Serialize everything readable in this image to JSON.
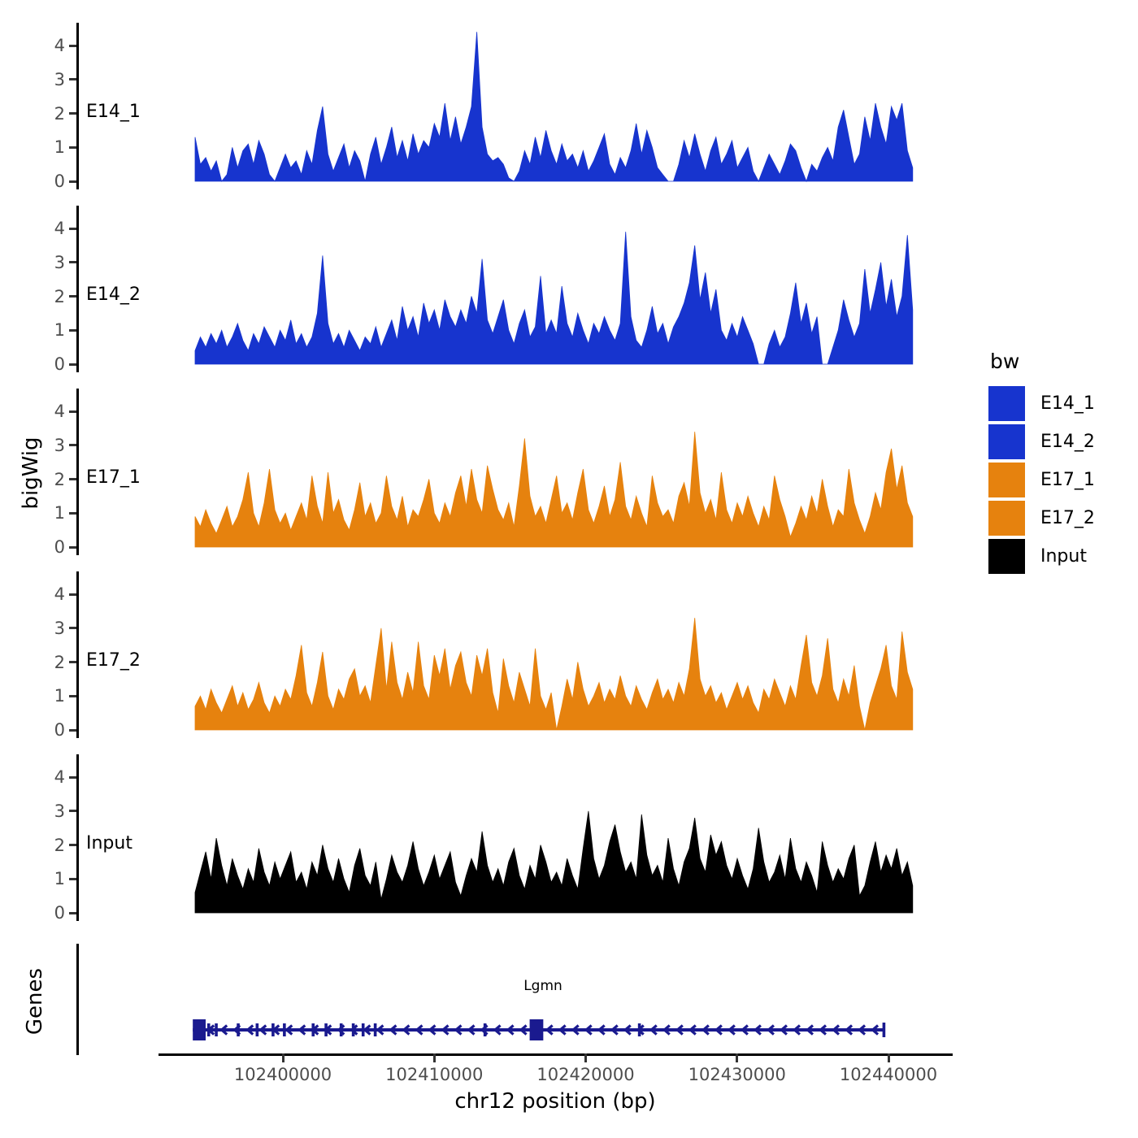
{
  "figure": {
    "y_axis_title": "bigWig",
    "genes_axis_title": "Genes",
    "x_axis_title": "chr12 position (bp)",
    "y_ticks": [
      0,
      1,
      2,
      3,
      4
    ],
    "x_ticks": [
      {
        "bp": 102400000,
        "label": "102400000"
      },
      {
        "bp": 102410000,
        "label": "102410000"
      },
      {
        "bp": 102420000,
        "label": "102420000"
      },
      {
        "bp": 102430000,
        "label": "102430000"
      },
      {
        "bp": 102440000,
        "label": "102440000"
      }
    ],
    "colors": {
      "blue": "#1734CE",
      "orange": "#E6820E",
      "black": "#000000",
      "gene_navy": "#1A1A8F",
      "axis_text_gray": "#4d4d4d"
    }
  },
  "legend": {
    "title": "bw",
    "items": [
      {
        "label": "E14_1",
        "color": "#1734CE"
      },
      {
        "label": "E14_2",
        "color": "#1734CE"
      },
      {
        "label": "E17_1",
        "color": "#E6820E"
      },
      {
        "label": "E17_2",
        "color": "#E6820E"
      },
      {
        "label": "Input",
        "color": "#000000"
      }
    ]
  },
  "chart_data": {
    "type": "area",
    "title": "",
    "xlabel": "chr12 position (bp)",
    "ylabel": "bigWig",
    "ylim": [
      0,
      4.5
    ],
    "x_start_bp": 102394200,
    "x_end_bp": 102441600,
    "x_axis_ticks_bp": [
      102400000,
      102410000,
      102420000,
      102430000,
      102440000
    ],
    "series": [
      {
        "name": "E14_1",
        "color": "#1734CE",
        "values": [
          1.3,
          0.5,
          0.7,
          0.3,
          0.6,
          0,
          0.2,
          1.0,
          0.4,
          0.9,
          1.1,
          0.5,
          1.2,
          0.8,
          0.2,
          0,
          0.4,
          0.8,
          0.4,
          0.6,
          0.2,
          0.9,
          0.5,
          1.5,
          2.2,
          0.8,
          0.3,
          0.7,
          1.1,
          0.4,
          0.9,
          0.6,
          0,
          0.8,
          1.3,
          0.5,
          1.0,
          1.6,
          0.7,
          1.2,
          0.6,
          1.4,
          0.8,
          1.2,
          1.0,
          1.7,
          1.3,
          2.3,
          1.2,
          1.9,
          1.1,
          1.6,
          2.2,
          4.4,
          1.6,
          0.8,
          0.6,
          0.7,
          0.5,
          0.1,
          0,
          0.3,
          0.9,
          0.5,
          1.3,
          0.7,
          1.5,
          0.9,
          0.5,
          1.1,
          0.6,
          0.8,
          0.4,
          0.9,
          0.3,
          0.6,
          1.0,
          1.4,
          0.5,
          0.2,
          0.7,
          0.4,
          0.9,
          1.7,
          0.8,
          1.5,
          1.0,
          0.4,
          0.2,
          0,
          0,
          0.5,
          1.2,
          0.7,
          1.4,
          0.8,
          0.3,
          0.9,
          1.3,
          0.5,
          0.8,
          1.2,
          0.4,
          0.7,
          1.0,
          0.3,
          0,
          0.4,
          0.8,
          0.5,
          0.2,
          0.6,
          1.1,
          0.9,
          0.4,
          0,
          0.5,
          0.3,
          0.7,
          1.0,
          0.6,
          1.6,
          2.1,
          1.3,
          0.5,
          0.8,
          1.9,
          1.2,
          2.3,
          1.6,
          1.1,
          2.2,
          1.8,
          2.3,
          0.9,
          0.4
        ]
      },
      {
        "name": "E14_2",
        "color": "#1734CE",
        "values": [
          0.4,
          0.8,
          0.5,
          0.9,
          0.6,
          1.0,
          0.5,
          0.8,
          1.2,
          0.7,
          0.4,
          0.9,
          0.6,
          1.1,
          0.8,
          0.5,
          1.0,
          0.7,
          1.3,
          0.6,
          0.9,
          0.5,
          0.8,
          1.5,
          3.2,
          1.2,
          0.6,
          0.9,
          0.5,
          1.0,
          0.7,
          0.4,
          0.8,
          0.6,
          1.1,
          0.5,
          0.9,
          1.3,
          0.7,
          1.7,
          1.0,
          1.4,
          0.8,
          1.8,
          1.2,
          1.6,
          1.0,
          1.9,
          1.4,
          1.1,
          1.6,
          1.2,
          2.0,
          1.5,
          3.1,
          1.3,
          0.9,
          1.4,
          1.9,
          1.0,
          0.6,
          1.2,
          1.6,
          0.8,
          1.1,
          2.6,
          0.9,
          1.3,
          0.9,
          2.3,
          1.2,
          0.8,
          1.5,
          1.0,
          0.6,
          1.2,
          0.9,
          1.4,
          1.0,
          0.7,
          1.2,
          3.9,
          1.4,
          0.7,
          0.5,
          1.0,
          1.7,
          0.9,
          1.2,
          0.6,
          1.1,
          1.4,
          1.8,
          2.4,
          3.5,
          1.9,
          2.7,
          1.5,
          2.2,
          1.0,
          0.7,
          1.2,
          0.8,
          1.4,
          1.0,
          0.6,
          0,
          0,
          0.6,
          1.0,
          0.5,
          0.8,
          1.5,
          2.4,
          1.2,
          1.8,
          0.9,
          1.4,
          0,
          0,
          0.5,
          1.0,
          1.9,
          1.3,
          0.8,
          1.2,
          2.8,
          1.5,
          2.2,
          3.0,
          1.7,
          2.5,
          1.4,
          2.0,
          3.8,
          1.6
        ]
      },
      {
        "name": "E17_1",
        "color": "#E6820E",
        "values": [
          0.9,
          0.6,
          1.1,
          0.7,
          0.4,
          0.8,
          1.2,
          0.6,
          0.9,
          1.4,
          2.2,
          1.0,
          0.6,
          1.3,
          2.3,
          1.1,
          0.7,
          1.0,
          0.5,
          0.9,
          1.3,
          0.8,
          2.1,
          1.2,
          0.7,
          2.2,
          1.0,
          1.4,
          0.8,
          0.5,
          1.1,
          1.9,
          0.9,
          1.3,
          0.7,
          1.0,
          2.1,
          1.2,
          0.8,
          1.5,
          0.6,
          1.1,
          0.9,
          1.4,
          2.0,
          1.0,
          0.7,
          1.3,
          0.9,
          1.6,
          2.1,
          1.2,
          2.3,
          1.4,
          1.0,
          2.4,
          1.7,
          1.1,
          0.8,
          1.3,
          0.6,
          1.8,
          3.2,
          1.5,
          0.9,
          1.2,
          0.7,
          1.4,
          2.1,
          1.0,
          1.3,
          0.8,
          1.6,
          2.3,
          1.1,
          0.7,
          1.2,
          1.8,
          0.9,
          1.4,
          2.5,
          1.2,
          0.8,
          1.5,
          1.0,
          0.6,
          2.1,
          1.3,
          0.9,
          1.1,
          0.7,
          1.5,
          1.9,
          1.2,
          3.4,
          1.6,
          1.0,
          1.4,
          0.8,
          2.2,
          1.1,
          0.7,
          1.3,
          0.9,
          1.5,
          1.0,
          0.6,
          1.2,
          0.8,
          2.1,
          1.4,
          0.9,
          0.3,
          0.7,
          1.2,
          0.8,
          1.5,
          1.0,
          2.0,
          1.2,
          0.6,
          1.1,
          0.9,
          2.3,
          1.3,
          0.8,
          0.4,
          0.9,
          1.6,
          1.1,
          2.2,
          2.9,
          1.7,
          2.4,
          1.3,
          0.9
        ]
      },
      {
        "name": "E17_2",
        "color": "#E6820E",
        "values": [
          0.7,
          1.0,
          0.6,
          1.2,
          0.8,
          0.5,
          0.9,
          1.3,
          0.7,
          1.1,
          0.6,
          0.9,
          1.4,
          0.8,
          0.5,
          1.0,
          0.7,
          1.2,
          0.9,
          1.6,
          2.5,
          1.1,
          0.7,
          1.4,
          2.3,
          1.0,
          0.6,
          1.2,
          0.9,
          1.5,
          1.8,
          1.0,
          1.3,
          0.8,
          1.9,
          3.0,
          1.2,
          2.6,
          1.4,
          0.9,
          1.7,
          1.1,
          2.6,
          1.3,
          0.9,
          2.2,
          1.6,
          2.4,
          1.2,
          1.9,
          2.3,
          1.4,
          1.0,
          2.2,
          1.6,
          2.4,
          1.1,
          0.5,
          2.1,
          1.3,
          0.8,
          1.7,
          1.2,
          0.7,
          2.4,
          1.0,
          0.6,
          1.1,
          0,
          0.7,
          1.5,
          0.9,
          2.0,
          1.2,
          0.7,
          1.0,
          1.4,
          0.8,
          1.2,
          0.9,
          1.6,
          1.0,
          0.7,
          1.3,
          0.9,
          0.6,
          1.1,
          1.5,
          0.9,
          1.2,
          0.8,
          1.4,
          1.0,
          1.8,
          3.3,
          1.5,
          1.0,
          1.3,
          0.8,
          1.1,
          0.6,
          1.0,
          1.4,
          0.9,
          1.3,
          0.8,
          0.5,
          1.2,
          0.9,
          1.5,
          1.1,
          0.7,
          1.3,
          0.9,
          1.9,
          2.8,
          1.4,
          1.0,
          1.6,
          2.7,
          1.2,
          0.8,
          1.5,
          1.0,
          1.9,
          0.7,
          0,
          0.8,
          1.3,
          1.8,
          2.5,
          1.3,
          0.9,
          2.9,
          1.7,
          1.2
        ]
      },
      {
        "name": "Input",
        "color": "#000000",
        "values": [
          0.6,
          1.2,
          1.8,
          1.0,
          2.2,
          1.4,
          0.8,
          1.6,
          1.1,
          0.7,
          1.3,
          0.9,
          1.9,
          1.2,
          0.8,
          1.5,
          1.0,
          1.4,
          1.8,
          0.9,
          1.2,
          0.7,
          1.5,
          1.1,
          2.0,
          1.3,
          0.9,
          1.6,
          1.0,
          0.6,
          1.4,
          1.9,
          1.1,
          0.8,
          1.5,
          0.4,
          1.0,
          1.7,
          1.2,
          0.9,
          1.4,
          2.1,
          1.3,
          0.8,
          1.2,
          1.7,
          1.0,
          1.4,
          1.8,
          0.9,
          0.5,
          1.1,
          1.6,
          1.2,
          2.4,
          1.4,
          0.9,
          1.3,
          0.8,
          1.5,
          1.9,
          1.1,
          0.7,
          1.4,
          1.0,
          2.0,
          1.5,
          0.9,
          1.2,
          0.8,
          1.6,
          1.1,
          0.7,
          1.9,
          3.0,
          1.6,
          1.0,
          1.4,
          2.1,
          2.6,
          1.8,
          1.2,
          1.5,
          1.0,
          2.9,
          1.7,
          1.1,
          1.4,
          0.9,
          2.2,
          1.3,
          0.8,
          1.5,
          1.9,
          2.8,
          1.6,
          1.2,
          2.3,
          1.7,
          2.1,
          1.4,
          1.0,
          1.6,
          1.1,
          0.7,
          1.3,
          2.5,
          1.5,
          0.9,
          1.2,
          1.7,
          1.0,
          2.2,
          1.3,
          0.9,
          1.5,
          1.1,
          0.6,
          2.1,
          1.4,
          0.9,
          1.3,
          1.0,
          1.6,
          2.0,
          0.5,
          0.8,
          1.5,
          2.1,
          1.2,
          1.7,
          1.3,
          1.9,
          1.1,
          1.5,
          0.8
        ]
      }
    ],
    "genes": {
      "label": "Lgmn",
      "strand": "-",
      "chromosome": "chr12",
      "start_bp": 102394050,
      "end_bp": 102439700,
      "color": "#1A1A8F",
      "big_exons_bp": [
        [
          102394050,
          102394900
        ],
        [
          102416300,
          102417200
        ]
      ],
      "exon_ticks_bp": [
        102395100,
        102395600,
        102397050,
        102398300,
        102399350,
        102400100,
        102402000,
        102402850,
        102403850,
        102404650,
        102405300,
        102406100,
        102413350,
        102423550
      ]
    }
  }
}
